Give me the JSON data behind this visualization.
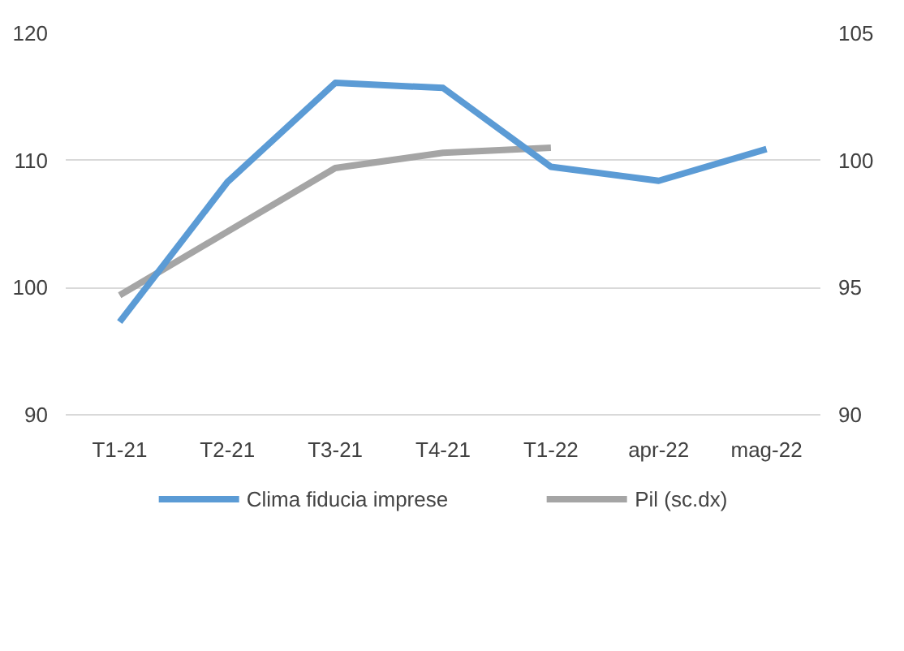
{
  "chart_data": {
    "type": "line",
    "categories": [
      "T1-21",
      "T2-21",
      "T3-21",
      "T4-21",
      "T1-22",
      "apr-22",
      "mag-22"
    ],
    "series": [
      {
        "name": "Clima fiducia imprese",
        "color": "#5b9bd5",
        "values": [
          97.3,
          108.3,
          116.1,
          115.7,
          109.5,
          108.4,
          110.9
        ]
      },
      {
        "name": "Pil (sc.dx)",
        "color": "#a5a5a5",
        "axis": "y2",
        "values": [
          94.7,
          97.2,
          99.7,
          100.3,
          100.5,
          null,
          null
        ]
      }
    ],
    "ylim": [
      90,
      120
    ],
    "yticks": [
      90,
      100,
      110,
      120
    ],
    "y2lim": [
      90,
      105
    ],
    "y2ticks": [
      90,
      95,
      100,
      105
    ],
    "grid": "y",
    "legend": "bottom",
    "marker": "none",
    "line_style": "solid"
  }
}
